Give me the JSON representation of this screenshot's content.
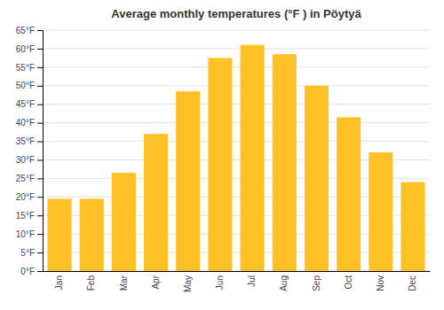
{
  "chart_data": {
    "type": "bar",
    "title": "Average monthly temperatures (°F ) in Pöytyä",
    "categories": [
      "Jan",
      "Feb",
      "Mar",
      "Apr",
      "May",
      "Jun",
      "Jul",
      "Aug",
      "Sep",
      "Oct",
      "Nov",
      "Dec"
    ],
    "values": [
      19.5,
      19.5,
      26.5,
      37.0,
      48.5,
      57.5,
      61.0,
      58.5,
      50.0,
      41.5,
      32.0,
      24.0
    ],
    "color": "#FFC125",
    "ylim": [
      0,
      65
    ],
    "yticks": [
      {
        "value": 0,
        "label": "0°F"
      },
      {
        "value": 5,
        "label": "5°F"
      },
      {
        "value": 10,
        "label": "10°F"
      },
      {
        "value": 15,
        "label": "15°F"
      },
      {
        "value": 20,
        "label": "20°F"
      },
      {
        "value": 25,
        "label": "25°F"
      },
      {
        "value": 30,
        "label": "30°F"
      },
      {
        "value": 35,
        "label": "35°F"
      },
      {
        "value": 40,
        "label": "40°F"
      },
      {
        "value": 45,
        "label": "45°F"
      },
      {
        "value": 50,
        "label": "50°F"
      },
      {
        "value": 55,
        "label": "55°F"
      },
      {
        "value": 60,
        "label": "60°F"
      },
      {
        "value": 65,
        "label": "65°F"
      }
    ],
    "grid": true
  }
}
